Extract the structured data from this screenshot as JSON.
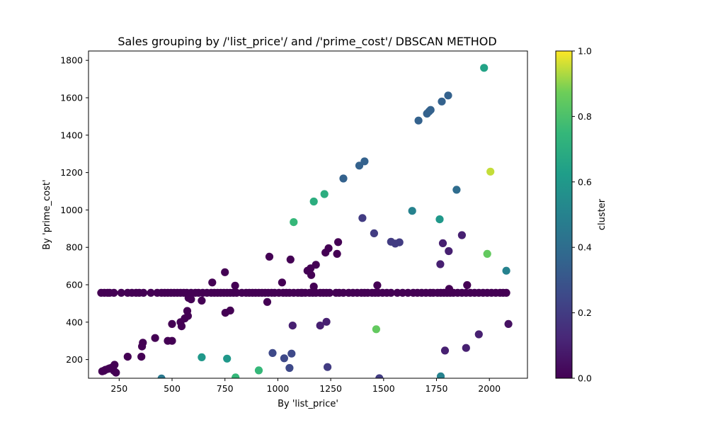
{
  "chart_data": {
    "type": "scatter",
    "title": "Sales grouping by /'list_price'/ and /'prime_cost'/  DBSCAN METHOD",
    "xlabel": "By 'list_price'",
    "ylabel": "By 'prime_cost'",
    "xlim": [
      105,
      2180
    ],
    "ylim": [
      100,
      1850
    ],
    "xticks": [
      250,
      500,
      750,
      1000,
      1250,
      1500,
      1750,
      2000
    ],
    "yticks": [
      200,
      400,
      600,
      800,
      1000,
      1200,
      1400,
      1600,
      1800
    ],
    "grid": false,
    "colorbar": {
      "label": "cluster",
      "range": [
        0,
        1
      ],
      "ticks": [
        "0.0",
        "0.2",
        "0.4",
        "0.6",
        "0.8",
        "1.0"
      ],
      "colormap": "viridis"
    },
    "points": [
      [
        170,
        137,
        0
      ],
      [
        178,
        140,
        0
      ],
      [
        185,
        145,
        0
      ],
      [
        198,
        150,
        0
      ],
      [
        205,
        153,
        0
      ],
      [
        215,
        157,
        0
      ],
      [
        225,
        140,
        0
      ],
      [
        228,
        172,
        0
      ],
      [
        235,
        130,
        0
      ],
      [
        290,
        215,
        0
      ],
      [
        355,
        215,
        0
      ],
      [
        358,
        270,
        0
      ],
      [
        362,
        290,
        0
      ],
      [
        420,
        315,
        0
      ],
      [
        450,
        99,
        0.45
      ],
      [
        480,
        300,
        0
      ],
      [
        500,
        300,
        0
      ],
      [
        500,
        390,
        0
      ],
      [
        540,
        400,
        0
      ],
      [
        545,
        378,
        0
      ],
      [
        560,
        420,
        0
      ],
      [
        572,
        460,
        0
      ],
      [
        575,
        433,
        0
      ],
      [
        578,
        530,
        0
      ],
      [
        590,
        522,
        0
      ],
      [
        640,
        515,
        0
      ],
      [
        640,
        212,
        0.6
      ],
      [
        690,
        612,
        0
      ],
      [
        750,
        667,
        0
      ],
      [
        752,
        450,
        0
      ],
      [
        760,
        205,
        0.6
      ],
      [
        775,
        462,
        0
      ],
      [
        798,
        595,
        0
      ],
      [
        800,
        104,
        0.75
      ],
      [
        910,
        142,
        0.75
      ],
      [
        950,
        508,
        0
      ],
      [
        960,
        750,
        0
      ],
      [
        975,
        235,
        0.25
      ],
      [
        1020,
        612,
        0
      ],
      [
        1030,
        207,
        0.25
      ],
      [
        1055,
        155,
        0.25
      ],
      [
        1060,
        735,
        0
      ],
      [
        1065,
        232,
        0.25
      ],
      [
        1070,
        382,
        0.1
      ],
      [
        1075,
        935,
        0.75
      ],
      [
        1110,
        557,
        0
      ],
      [
        1140,
        675,
        0
      ],
      [
        1155,
        688,
        0
      ],
      [
        1158,
        652,
        0
      ],
      [
        1170,
        590,
        0
      ],
      [
        1170,
        1045,
        0.7
      ],
      [
        1180,
        707,
        0
      ],
      [
        1200,
        382,
        0.1
      ],
      [
        1220,
        1085,
        0.7
      ],
      [
        1225,
        772,
        0
      ],
      [
        1230,
        402,
        0.1
      ],
      [
        1235,
        160,
        0.2
      ],
      [
        1240,
        795,
        0
      ],
      [
        1280,
        765,
        0
      ],
      [
        1285,
        828,
        0
      ],
      [
        1310,
        1168,
        0.35
      ],
      [
        1385,
        1237,
        0.35
      ],
      [
        1400,
        957,
        0.2
      ],
      [
        1410,
        1260,
        0.35
      ],
      [
        1455,
        875,
        0.2
      ],
      [
        1465,
        362,
        0.85
      ],
      [
        1470,
        597,
        0
      ],
      [
        1480,
        100,
        0.2
      ],
      [
        1535,
        830,
        0.2
      ],
      [
        1555,
        820,
        0.2
      ],
      [
        1575,
        827,
        0.2
      ],
      [
        1635,
        995,
        0.5
      ],
      [
        1665,
        1478,
        0.35
      ],
      [
        1705,
        1515,
        0.35
      ],
      [
        1715,
        1527,
        0.35
      ],
      [
        1722,
        1535,
        0.35
      ],
      [
        1765,
        950,
        0.6
      ],
      [
        1768,
        710,
        0.1
      ],
      [
        1770,
        110,
        0.5
      ],
      [
        1775,
        1580,
        0.35
      ],
      [
        1780,
        822,
        0.1
      ],
      [
        1790,
        248,
        0.1
      ],
      [
        1805,
        1612,
        0.35
      ],
      [
        1808,
        780,
        0.1
      ],
      [
        1810,
        578,
        0
      ],
      [
        1845,
        1108,
        0.4
      ],
      [
        1870,
        865,
        0.1
      ],
      [
        1890,
        262,
        0.1
      ],
      [
        1895,
        598,
        0
      ],
      [
        1950,
        335,
        0.1
      ],
      [
        1975,
        1760,
        0.65
      ],
      [
        1990,
        765,
        0.85
      ],
      [
        2005,
        1205,
        0.95
      ],
      [
        2080,
        675,
        0.5
      ],
      [
        2090,
        390,
        0.05
      ]
    ],
    "baseline_points": {
      "y": 557,
      "cluster": 0,
      "x": [
        165,
        180,
        195,
        205,
        225,
        260,
        290,
        310,
        330,
        345,
        365,
        400,
        430,
        450,
        465,
        480,
        495,
        510,
        525,
        540,
        555,
        570,
        590,
        610,
        625,
        645,
        665,
        685,
        700,
        715,
        730,
        745,
        760,
        775,
        790,
        805,
        830,
        850,
        865,
        880,
        895,
        910,
        925,
        940,
        955,
        970,
        985,
        1005,
        1025,
        1040,
        1055,
        1075,
        1095,
        1115,
        1130,
        1150,
        1165,
        1180,
        1200,
        1215,
        1230,
        1245,
        1275,
        1290,
        1310,
        1335,
        1355,
        1375,
        1395,
        1410,
        1425,
        1445,
        1460,
        1475,
        1495,
        1515,
        1535,
        1565,
        1590,
        1615,
        1640,
        1660,
        1680,
        1700,
        1720,
        1735,
        1755,
        1770,
        1785,
        1800,
        1815,
        1830,
        1850,
        1870,
        1890,
        1910,
        1930,
        1950,
        1970,
        1990,
        2010,
        2030,
        2050,
        2065,
        2080
      ]
    }
  }
}
